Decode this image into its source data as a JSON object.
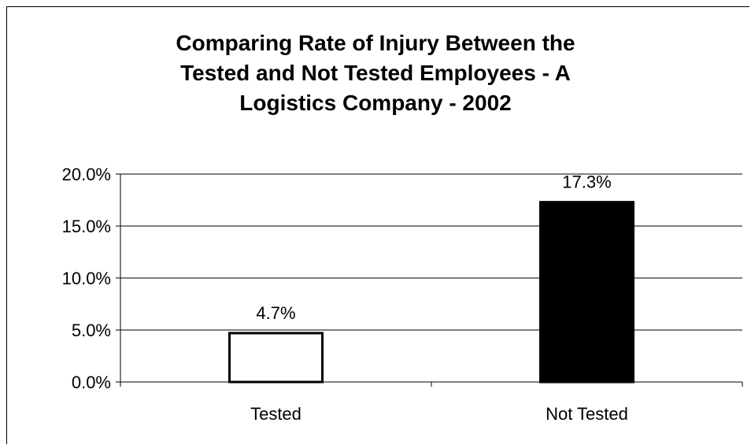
{
  "chart_data": {
    "type": "bar",
    "title_lines": [
      "Comparing Rate of Injury Between the",
      "Tested and Not Tested Employees - A",
      "Logistics Company - 2002"
    ],
    "categories": [
      "Tested",
      "Not Tested"
    ],
    "values": [
      4.7,
      17.3
    ],
    "data_labels": [
      "4.7%",
      "17.3%"
    ],
    "bar_fill": [
      "#ffffff",
      "#000000"
    ],
    "bar_stroke": "#000000",
    "ylim": [
      0,
      20
    ],
    "yticks": [
      0,
      5,
      10,
      15,
      20
    ],
    "ytick_labels": [
      "0.0%",
      "5.0%",
      "10.0%",
      "15.0%",
      "20.0%"
    ],
    "grid": true,
    "legend": false
  }
}
